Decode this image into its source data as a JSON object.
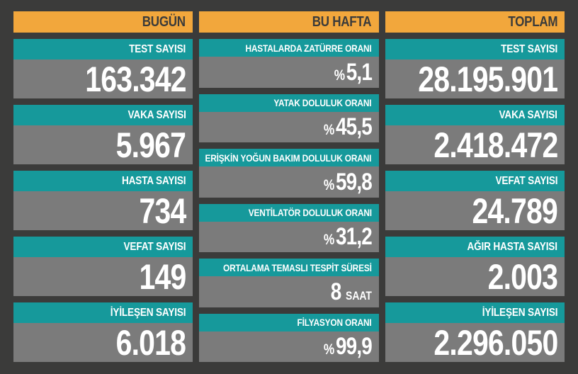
{
  "colors": {
    "background": "#3B3B3A",
    "header_bg": "#F2A73C",
    "header_text": "#3B3B3A",
    "label_bg": "#16999B",
    "value_bg": "#7B7B7B",
    "value_text": "#FFFFFF"
  },
  "columns": [
    {
      "header": "BUGÜN",
      "cards": [
        {
          "label": "TEST SAYISI",
          "value": "163.342"
        },
        {
          "label": "VAKA SAYISI",
          "value": "5.967"
        },
        {
          "label": "HASTA SAYISI",
          "value": "734"
        },
        {
          "label": "VEFAT SAYISI",
          "value": "149"
        },
        {
          "label": "İYİLEŞEN SAYISI",
          "value": "6.018"
        }
      ]
    },
    {
      "header": "BU HAFTA",
      "cards": [
        {
          "label": "HASTALARDA ZATÜRRE ORANI",
          "prefix": "%",
          "value": "5,1"
        },
        {
          "label": "YATAK DOLULUK ORANI",
          "prefix": "%",
          "value": "45,5"
        },
        {
          "label": "ERİŞKİN YOĞUN BAKIM DOLULUK ORANI",
          "prefix": "%",
          "value": "59,8"
        },
        {
          "label": "VENTİLATÖR DOLULUK ORANI",
          "prefix": "%",
          "value": "31,2"
        },
        {
          "label": "ORTALAMA TEMASLI TESPİT SÜRESİ",
          "value": "8",
          "suffix": "SAAT"
        },
        {
          "label": "FİLYASYON ORANI",
          "prefix": "%",
          "value": "99,9"
        }
      ]
    },
    {
      "header": "TOPLAM",
      "cards": [
        {
          "label": "TEST SAYISI",
          "value": "28.195.901"
        },
        {
          "label": "VAKA SAYISI",
          "value": "2.418.472"
        },
        {
          "label": "VEFAT SAYISI",
          "value": "24.789"
        },
        {
          "label": "AĞIR HASTA SAYISI",
          "value": "2.003"
        },
        {
          "label": "İYİLEŞEN SAYISI",
          "value": "2.296.050"
        }
      ]
    }
  ],
  "chart_data": [
    {
      "type": "table",
      "title": "BUGÜN",
      "rows": [
        [
          "TEST SAYISI",
          "163.342"
        ],
        [
          "VAKA SAYISI",
          "5.967"
        ],
        [
          "HASTA SAYISI",
          "734"
        ],
        [
          "VEFAT SAYISI",
          "149"
        ],
        [
          "İYİLEŞEN SAYISI",
          "6.018"
        ]
      ]
    },
    {
      "type": "table",
      "title": "BU HAFTA",
      "rows": [
        [
          "HASTALARDA ZATÜRRE ORANI",
          "%5,1"
        ],
        [
          "YATAK DOLULUK ORANI",
          "%45,5"
        ],
        [
          "ERİŞKİN YOĞUN BAKIM DOLULUK ORANI",
          "%59,8"
        ],
        [
          "VENTİLATÖR DOLULUK ORANI",
          "%31,2"
        ],
        [
          "ORTALAMA TEMASLI TESPİT SÜRESİ",
          "8 SAAT"
        ],
        [
          "FİLYASYON ORANI",
          "%99,9"
        ]
      ]
    },
    {
      "type": "table",
      "title": "TOPLAM",
      "rows": [
        [
          "TEST SAYISI",
          "28.195.901"
        ],
        [
          "VAKA SAYISI",
          "2.418.472"
        ],
        [
          "VEFAT SAYISI",
          "24.789"
        ],
        [
          "AĞIR HASTA SAYISI",
          "2.003"
        ],
        [
          "İYİLEŞEN SAYISI",
          "2.296.050"
        ]
      ]
    }
  ]
}
